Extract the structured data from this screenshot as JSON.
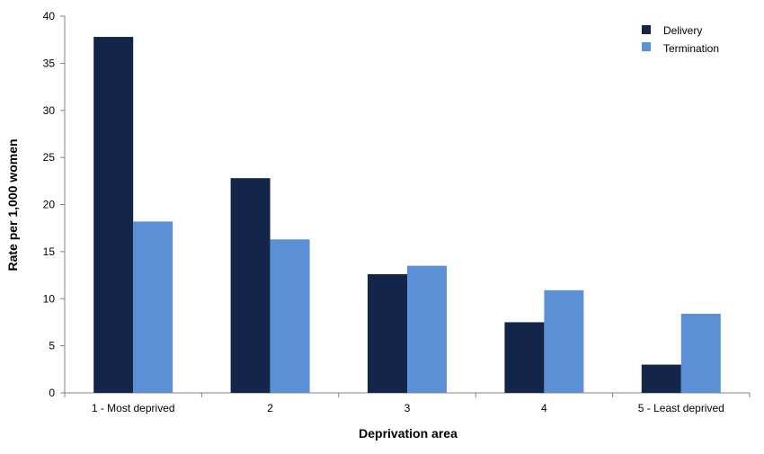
{
  "chart_data": {
    "type": "bar",
    "title": "",
    "xlabel": "Deprivation area",
    "ylabel": "Rate per 1,000 women",
    "categories": [
      "1 - Most deprived",
      "2",
      "3",
      "4",
      "5 - Least deprived"
    ],
    "series": [
      {
        "name": "Delivery",
        "values": [
          37.8,
          22.8,
          12.6,
          7.5,
          3.0
        ]
      },
      {
        "name": "Termination",
        "values": [
          18.2,
          16.3,
          13.5,
          10.9,
          8.4
        ]
      }
    ],
    "ylim": [
      0,
      40
    ],
    "yticks": [
      0,
      5,
      10,
      15,
      20,
      25,
      30,
      35,
      40
    ],
    "grid": false,
    "legend_position": "top-right"
  },
  "colors": {
    "Delivery": "#13264a",
    "Termination": "#5b8fd6",
    "axis": "#808080"
  }
}
